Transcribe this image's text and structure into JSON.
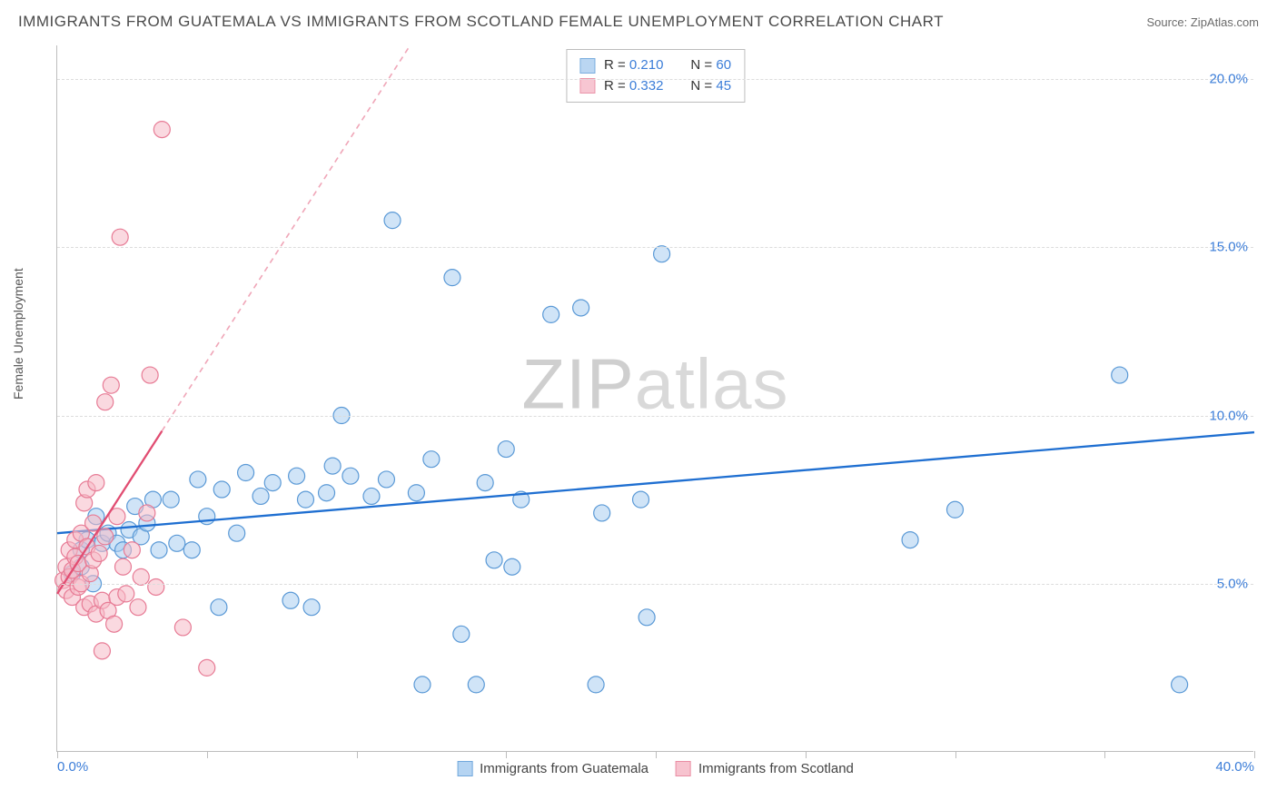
{
  "header": {
    "title": "IMMIGRANTS FROM GUATEMALA VS IMMIGRANTS FROM SCOTLAND FEMALE UNEMPLOYMENT CORRELATION CHART",
    "source": "Source: ZipAtlas.com"
  },
  "chart": {
    "type": "scatter",
    "ylabel": "Female Unemployment",
    "watermark": "ZIPatlas",
    "background_color": "#ffffff",
    "grid_color": "#dcdcdc",
    "axis_color": "#bdbdbd",
    "tick_label_color": "#3b7dd8",
    "xlim": [
      0,
      40
    ],
    "ylim": [
      0,
      21
    ],
    "x_ticks": [
      0,
      5,
      10,
      15,
      20,
      25,
      30,
      35,
      40
    ],
    "x_tick_labels": {
      "0": "0.0%",
      "40": "40.0%"
    },
    "y_ticks": [
      5,
      10,
      15,
      20
    ],
    "y_tick_labels": {
      "5": "5.0%",
      "10": "10.0%",
      "15": "15.0%",
      "20": "20.0%"
    },
    "marker_radius": 9,
    "marker_stroke_width": 1.2,
    "series": [
      {
        "name": "Immigrants from Guatemala",
        "R": "0.210",
        "N": "60",
        "fill": "#a9cdf0",
        "stroke": "#5a99d6",
        "fill_opacity": 0.55,
        "trend": {
          "color": "#1f6fd1",
          "width": 2.3,
          "y_at_xmin": 6.5,
          "y_at_xmax": 9.5,
          "solid_xmax": 40
        },
        "points": [
          [
            0.5,
            5.3
          ],
          [
            0.8,
            5.5
          ],
          [
            0.8,
            6.0
          ],
          [
            1.0,
            6.3
          ],
          [
            1.2,
            5.0
          ],
          [
            1.3,
            7.0
          ],
          [
            1.5,
            6.2
          ],
          [
            1.7,
            6.5
          ],
          [
            2.0,
            6.2
          ],
          [
            2.2,
            6.0
          ],
          [
            2.4,
            6.6
          ],
          [
            2.6,
            7.3
          ],
          [
            2.8,
            6.4
          ],
          [
            3.0,
            6.8
          ],
          [
            3.2,
            7.5
          ],
          [
            3.4,
            6.0
          ],
          [
            3.8,
            7.5
          ],
          [
            4.0,
            6.2
          ],
          [
            4.5,
            6.0
          ],
          [
            4.7,
            8.1
          ],
          [
            5.0,
            7.0
          ],
          [
            5.4,
            4.3
          ],
          [
            5.5,
            7.8
          ],
          [
            6.0,
            6.5
          ],
          [
            6.3,
            8.3
          ],
          [
            6.8,
            7.6
          ],
          [
            7.2,
            8.0
          ],
          [
            7.8,
            4.5
          ],
          [
            8.0,
            8.2
          ],
          [
            8.3,
            7.5
          ],
          [
            8.5,
            4.3
          ],
          [
            9.0,
            7.7
          ],
          [
            9.2,
            8.5
          ],
          [
            9.5,
            10.0
          ],
          [
            9.8,
            8.2
          ],
          [
            10.5,
            7.6
          ],
          [
            11.0,
            8.1
          ],
          [
            11.2,
            15.8
          ],
          [
            12.0,
            7.7
          ],
          [
            12.2,
            2.0
          ],
          [
            12.5,
            8.7
          ],
          [
            13.2,
            14.1
          ],
          [
            13.5,
            3.5
          ],
          [
            14.0,
            2.0
          ],
          [
            14.3,
            8.0
          ],
          [
            14.6,
            5.7
          ],
          [
            15.0,
            9.0
          ],
          [
            15.2,
            5.5
          ],
          [
            15.5,
            7.5
          ],
          [
            16.5,
            13.0
          ],
          [
            17.5,
            13.2
          ],
          [
            18.0,
            2.0
          ],
          [
            18.2,
            7.1
          ],
          [
            19.5,
            7.5
          ],
          [
            19.7,
            4.0
          ],
          [
            20.2,
            14.8
          ],
          [
            28.5,
            6.3
          ],
          [
            30.0,
            7.2
          ],
          [
            35.5,
            11.2
          ],
          [
            37.5,
            2.0
          ]
        ]
      },
      {
        "name": "Immigrants from Scotland",
        "R": "0.332",
        "N": "45",
        "fill": "#f6b9c7",
        "stroke": "#e77b95",
        "fill_opacity": 0.55,
        "trend": {
          "color": "#e14d72",
          "width": 2.3,
          "y_at_xmin": 4.7,
          "y_at_xmax": 60,
          "solid_xmax": 3.5,
          "dash": "6,5"
        },
        "points": [
          [
            0.2,
            5.1
          ],
          [
            0.3,
            5.5
          ],
          [
            0.3,
            4.8
          ],
          [
            0.4,
            5.2
          ],
          [
            0.4,
            6.0
          ],
          [
            0.5,
            5.4
          ],
          [
            0.5,
            4.6
          ],
          [
            0.6,
            5.8
          ],
          [
            0.6,
            6.3
          ],
          [
            0.7,
            4.9
          ],
          [
            0.7,
            5.6
          ],
          [
            0.8,
            6.5
          ],
          [
            0.8,
            5.0
          ],
          [
            0.9,
            7.4
          ],
          [
            0.9,
            4.3
          ],
          [
            1.0,
            6.1
          ],
          [
            1.0,
            7.8
          ],
          [
            1.1,
            5.3
          ],
          [
            1.1,
            4.4
          ],
          [
            1.2,
            6.8
          ],
          [
            1.2,
            5.7
          ],
          [
            1.3,
            4.1
          ],
          [
            1.3,
            8.0
          ],
          [
            1.4,
            5.9
          ],
          [
            1.5,
            4.5
          ],
          [
            1.5,
            3.0
          ],
          [
            1.6,
            6.4
          ],
          [
            1.6,
            10.4
          ],
          [
            1.7,
            4.2
          ],
          [
            1.8,
            10.9
          ],
          [
            1.9,
            3.8
          ],
          [
            2.0,
            7.0
          ],
          [
            2.0,
            4.6
          ],
          [
            2.1,
            15.3
          ],
          [
            2.2,
            5.5
          ],
          [
            2.3,
            4.7
          ],
          [
            2.5,
            6.0
          ],
          [
            2.7,
            4.3
          ],
          [
            2.8,
            5.2
          ],
          [
            3.0,
            7.1
          ],
          [
            3.1,
            11.2
          ],
          [
            3.3,
            4.9
          ],
          [
            3.5,
            18.5
          ],
          [
            4.2,
            3.7
          ],
          [
            5.0,
            2.5
          ]
        ]
      }
    ],
    "legend_top": {
      "border_color": "#bdbdbd",
      "r_label": "R =",
      "n_label": "N ="
    }
  }
}
